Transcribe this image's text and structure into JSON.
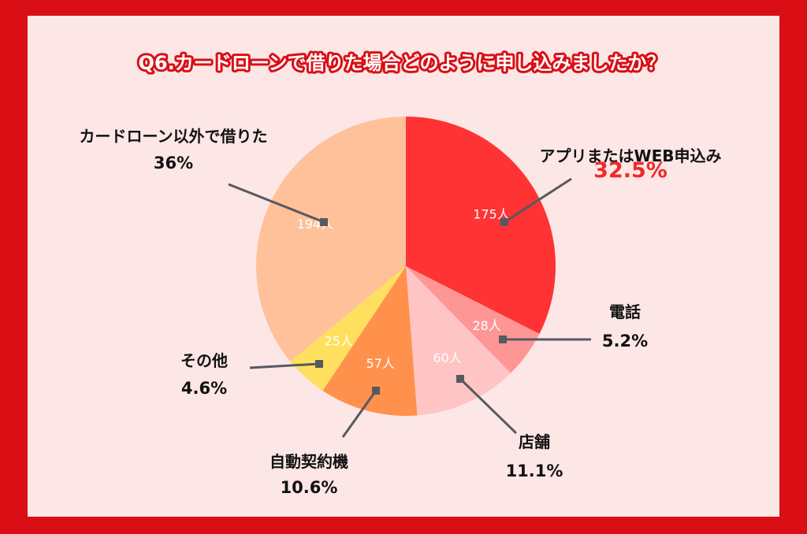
{
  "chart_data": {
    "type": "pie",
    "title": "Q6.カードローンで借りた場合どのように申し込みましたか？",
    "slices": [
      {
        "label": "アプリまたはWEB申込み",
        "percent_text": "32.5%",
        "count_text": "175人",
        "value": 175,
        "color": "#ff3333",
        "highlight": true
      },
      {
        "label": "電話",
        "percent_text": "5.2%",
        "count_text": "28人",
        "value": 28,
        "color": "#ff9696",
        "highlight": false
      },
      {
        "label": "店舗",
        "percent_text": "11.1%",
        "count_text": "60人",
        "value": 60,
        "color": "#ffc4c4",
        "highlight": false
      },
      {
        "label": "自動契約機",
        "percent_text": "10.6%",
        "count_text": "57人",
        "value": 57,
        "color": "#ff914d",
        "highlight": false
      },
      {
        "label": "その他",
        "percent_text": "4.6%",
        "count_text": "25人",
        "value": 25,
        "color": "#ffe05e",
        "highlight": false
      },
      {
        "label": "カードローン以外で借りた",
        "percent_text": "36%",
        "count_text": "194人",
        "value": 194,
        "color": "#ffc199",
        "highlight": false
      }
    ],
    "colors": {
      "background": "#d90f15",
      "panel": "#fde6e6",
      "highlight_text": "#ee2a2a",
      "leader": "#555a60"
    }
  }
}
